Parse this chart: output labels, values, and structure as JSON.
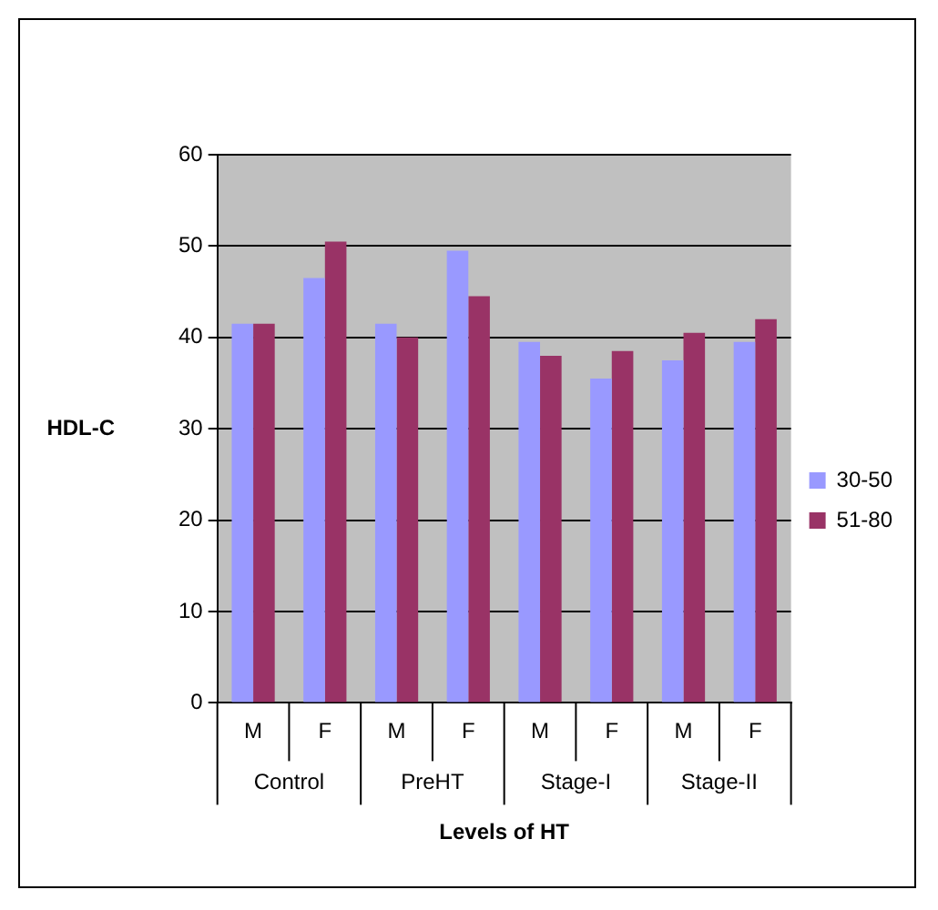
{
  "chart_data": {
    "type": "bar",
    "xlabel": "Levels of HT",
    "ylabel": "HDL-C",
    "categories": [
      "M",
      "F",
      "M",
      "F",
      "M",
      "F",
      "M",
      "F"
    ],
    "annotations": [
      "Control",
      "PreHT",
      "Stage-I",
      "Stage-II"
    ],
    "series": [
      {
        "name": "30-50",
        "color": "#9999ff",
        "values": [
          41.5,
          46.5,
          41.5,
          49.5,
          39.5,
          35.5,
          37.5,
          39.5
        ]
      },
      {
        "name": "51-80",
        "color": "#993366",
        "values": [
          41.5,
          50.5,
          40,
          44.5,
          38,
          38.5,
          40.5,
          42
        ]
      }
    ],
    "ylim": [
      0,
      60
    ],
    "yticks": [
      0,
      10,
      20,
      30,
      40,
      50,
      60
    ],
    "grid": "y",
    "legend": "right"
  }
}
